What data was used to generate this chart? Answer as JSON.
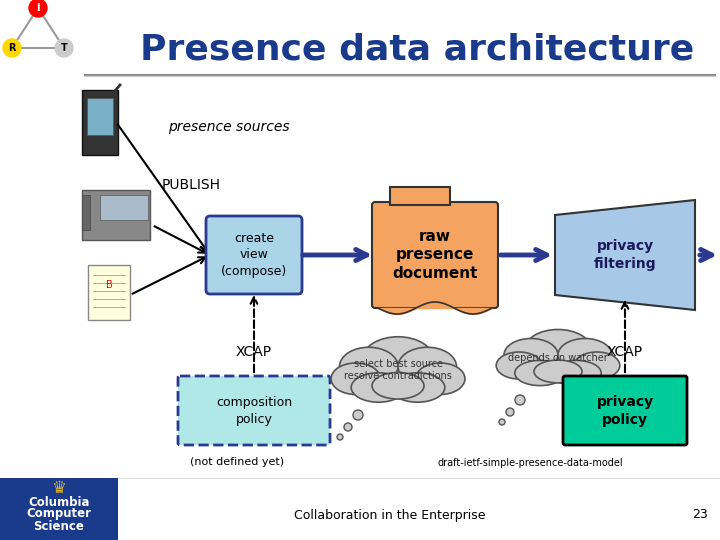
{
  "title": "Presence data architecture",
  "title_color": "#1a3a8c",
  "title_fontsize": 26,
  "bg_color": "#ffffff",
  "presence_sources_text": "presence sources",
  "publish_text": "PUBLISH",
  "create_view_text": "create\nview\n(compose)",
  "raw_presence_text": "raw\npresence\ndocument",
  "privacy_filtering_text": "privacy\nfiltering",
  "xcap_left_text": "XCAP",
  "xcap_right_text": "XCAP",
  "composition_policy_text": "composition\npolicy",
  "not_defined_text": "(not defined yet)",
  "cloud_left_text": "select best source\nresolve contradictions",
  "cloud_right_text": "depends on watcher",
  "privacy_policy_text": "privacy\npolicy",
  "draft_text": "draft-ietf-simple-presence-data-model",
  "footer_text": "Collaboration in the Enterprise",
  "page_num": "23",
  "arrow_color": "#2b3990",
  "create_view_box_color": "#aad4e8",
  "create_view_box_edge": "#2b3990",
  "raw_presence_color": "#f4a460",
  "raw_presence_edge": "#333333",
  "privacy_filtering_color": "#a8c8e8",
  "privacy_filtering_edge": "#333333",
  "composition_policy_color": "#b0e8e8",
  "composition_policy_edge": "#2b3990",
  "privacy_policy_color": "#00cc99",
  "privacy_policy_edge": "#000000",
  "columbia_bg": "#1a3a8c",
  "cloud_color": "#cccccc",
  "line_color": "#888888"
}
